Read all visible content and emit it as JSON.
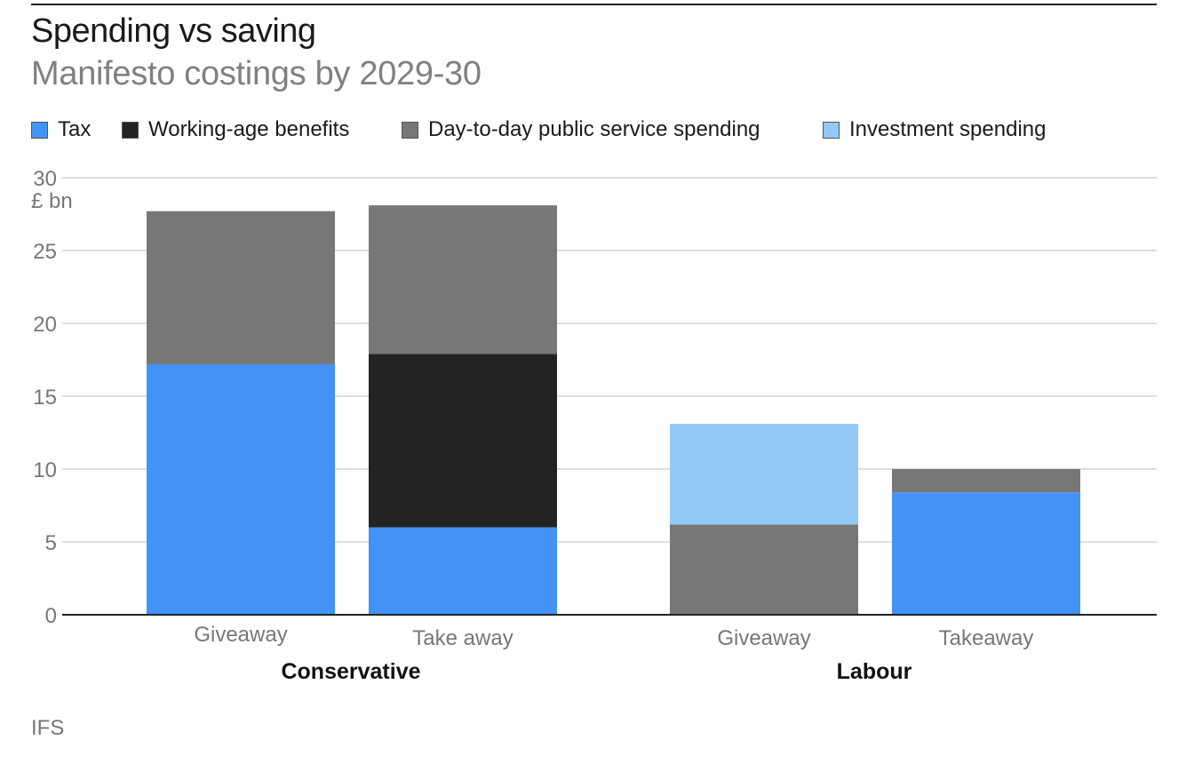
{
  "chart_data": {
    "type": "bar",
    "stacked": true,
    "title": "Spending vs saving",
    "subtitle": "Manifesto costings by 2029-30",
    "ylabel": "£ bn",
    "ylim": [
      0,
      30
    ],
    "yticks": [
      0,
      5,
      10,
      15,
      20,
      25,
      30
    ],
    "grid": true,
    "legend_position": "top",
    "groups": [
      {
        "name": "Conservative",
        "categories": [
          "Giveaway",
          "Take away"
        ]
      },
      {
        "name": "Labour",
        "categories": [
          "Giveaway",
          "Takeaway"
        ]
      }
    ],
    "categories": [
      "Conservative Giveaway",
      "Conservative Take away",
      "Labour Giveaway",
      "Labour Takeaway"
    ],
    "category_labels": [
      "Giveaway",
      "Take away",
      "Giveaway",
      "Takeaway"
    ],
    "series": [
      {
        "name": "Tax",
        "color": "#4293f5",
        "values": [
          17.2,
          6.0,
          0,
          8.4
        ]
      },
      {
        "name": "Working-age benefits",
        "color": "#232323",
        "values": [
          0,
          11.9,
          0,
          0
        ]
      },
      {
        "name": "Day-to-day public service spending",
        "color": "#777777",
        "values": [
          10.5,
          10.2,
          6.2,
          1.6
        ]
      },
      {
        "name": "Investment spending",
        "color": "#93c9f7",
        "values": [
          0,
          0,
          6.9,
          0
        ]
      }
    ],
    "source": "IFS"
  }
}
